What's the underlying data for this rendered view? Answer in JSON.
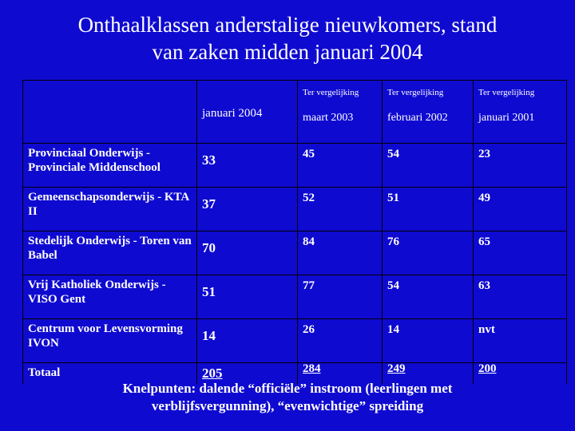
{
  "title": {
    "line1": "Onthaalklassen anderstalige nieuwkomers, stand",
    "line2": "van zaken midden januari 2004"
  },
  "table": {
    "headers": [
      {
        "ter": "",
        "date": "januari 2004"
      },
      {
        "ter": "Ter vergelijking",
        "date": "maart 2003"
      },
      {
        "ter": "Ter vergelijking",
        "date": "februari 2002"
      },
      {
        "ter": "Ter vergelijking",
        "date": "januari 2001"
      }
    ],
    "rows": [
      {
        "label": "Provinciaal Onderwijs - Provinciale Middenschool",
        "values": [
          "33",
          "45",
          "54",
          "23"
        ]
      },
      {
        "label": "Gemeenschapsonderwijs - KTA II",
        "values": [
          "37",
          "52",
          "51",
          "49"
        ]
      },
      {
        "label": "Stedelijk Onderwijs - Toren van Babel",
        "values": [
          "70",
          "84",
          "76",
          "65"
        ]
      },
      {
        "label": "Vrij Katholiek Onderwijs - VISO Gent",
        "values": [
          "51",
          "77",
          "54",
          "63"
        ]
      },
      {
        "label": "Centrum voor Levensvorming IVON",
        "values": [
          "14",
          "26",
          "14",
          "nvt"
        ]
      }
    ],
    "total": {
      "label": "Totaal",
      "values": [
        "205",
        "284",
        "249",
        "200"
      ]
    }
  },
  "footnote": {
    "line1": "Knelpunten: dalende “officiële” instroom (leerlingen met",
    "line2": "verblijfsvergunning), “evenwichtige” spreiding"
  }
}
